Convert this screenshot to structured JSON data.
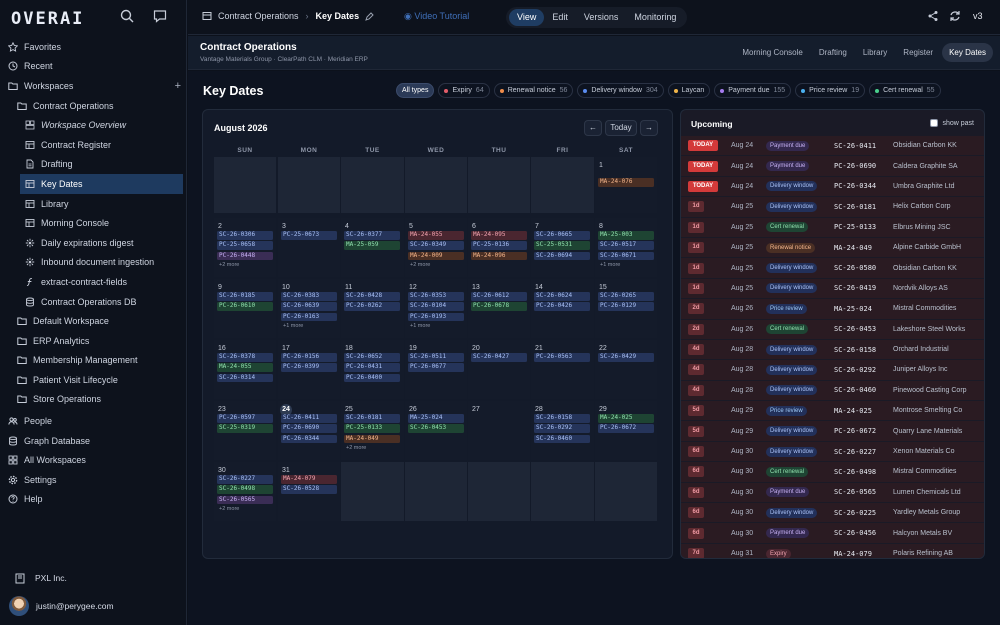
{
  "sidebar": {
    "logo": "OVERAI",
    "items": [
      {
        "label": "Favorites",
        "icon": "star-icon",
        "level": 0
      },
      {
        "label": "Recent",
        "icon": "clock-icon",
        "level": 0
      },
      {
        "label": "Workspaces",
        "icon": "folder-icon",
        "level": 0,
        "plus": "+"
      },
      {
        "label": "Contract Operations",
        "icon": "folder-icon",
        "level": 1
      },
      {
        "label": "Workspace Overview",
        "icon": "dashboard-icon",
        "level": 2,
        "italic": true
      },
      {
        "label": "Contract Register",
        "icon": "table-icon",
        "level": 2
      },
      {
        "label": "Drafting",
        "icon": "document-icon",
        "level": 2
      },
      {
        "label": "Key Dates",
        "icon": "table-icon",
        "level": 2,
        "selected": true
      },
      {
        "label": "Library",
        "icon": "table-icon",
        "level": 2
      },
      {
        "label": "Morning Console",
        "icon": "table-icon",
        "level": 2
      },
      {
        "label": "Daily expirations digest",
        "icon": "automation-icon",
        "level": 2
      },
      {
        "label": "Inbound document ingestion",
        "icon": "automation-icon",
        "level": 2
      },
      {
        "label": "extract-contract-fields",
        "icon": "function-icon",
        "level": 2
      },
      {
        "label": "Contract Operations DB",
        "icon": "database-icon",
        "level": 2
      },
      {
        "label": "Default Workspace",
        "icon": "folder-icon",
        "level": 1
      },
      {
        "label": "ERP Analytics",
        "icon": "folder-icon",
        "level": 1
      },
      {
        "label": "Membership Management",
        "icon": "folder-icon",
        "level": 1
      },
      {
        "label": "Patient Visit Lifecycle",
        "icon": "folder-icon",
        "level": 1
      },
      {
        "label": "Store Operations",
        "icon": "folder-icon",
        "level": 1
      },
      {
        "label": "People",
        "icon": "people-icon",
        "level": 0
      },
      {
        "label": "Graph Database",
        "icon": "database-icon",
        "level": 0
      },
      {
        "label": "All Workspaces",
        "icon": "grid-icon",
        "level": 0
      },
      {
        "label": "Settings",
        "icon": "gear-icon",
        "level": 0
      },
      {
        "label": "Help",
        "icon": "help-icon",
        "level": 0
      }
    ],
    "org": "PXL Inc.",
    "user_email": "justin@perygee.com"
  },
  "topbar": {
    "crumb1": "Contract Operations",
    "sep": "›",
    "crumb2": "Key Dates",
    "video": "Video Tutorial",
    "modes": [
      "View",
      "Edit",
      "Versions",
      "Monitoring"
    ],
    "active_mode": "View",
    "version": "v3"
  },
  "subheader": {
    "title": "Contract Operations",
    "subtitle": "Vantage Materials Group · ClearPath CLM · Meridian ERP",
    "tabs": [
      "Morning Console",
      "Drafting",
      "Library",
      "Register",
      "Key Dates"
    ],
    "active_tab": "Key Dates"
  },
  "page_title": "Key Dates",
  "filters": [
    {
      "label": "All types",
      "count": "",
      "color": "",
      "active": true
    },
    {
      "label": "Expiry",
      "count": "64",
      "color": "#e35d6a"
    },
    {
      "label": "Renewal notice",
      "count": "56",
      "color": "#f08c4a"
    },
    {
      "label": "Delivery window",
      "count": "304",
      "color": "#5b8cf0"
    },
    {
      "label": "Laycan",
      "count": "",
      "color": "#f0b54a"
    },
    {
      "label": "Payment due",
      "count": "155",
      "color": "#a67cf0"
    },
    {
      "label": "Price review",
      "count": "19",
      "color": "#4ab0f0"
    },
    {
      "label": "Cert renewal",
      "count": "55",
      "color": "#4ad08c"
    }
  ],
  "calendar": {
    "month": "August 2026",
    "prev": "←",
    "today_btn": "Today",
    "next": "→",
    "dow": [
      "SUN",
      "MON",
      "TUE",
      "WED",
      "THU",
      "FRI",
      "SAT"
    ],
    "weeks": [
      [
        null,
        null,
        null,
        null,
        null,
        null,
        {
          "d": "1",
          "ev": [
            [
              "MA-24-076",
              "o"
            ]
          ]
        }
      ],
      [
        {
          "d": "2",
          "ev": [
            [
              "SC-26-0306",
              "b"
            ],
            [
              "PC-25-0658",
              "b"
            ],
            [
              "PC-26-0448",
              "p"
            ]
          ],
          "more": "+2 more"
        },
        {
          "d": "3",
          "ev": [
            [
              "PC-25-0673",
              "b"
            ]
          ]
        },
        {
          "d": "4",
          "ev": [
            [
              "SC-26-0377",
              "b"
            ],
            [
              "MA-25-059",
              "g"
            ]
          ]
        },
        {
          "d": "5",
          "ev": [
            [
              "MA-24-055",
              "r"
            ],
            [
              "SC-26-0349",
              "b"
            ],
            [
              "MA-24-009",
              "o"
            ]
          ],
          "more": "+2 more"
        },
        {
          "d": "6",
          "ev": [
            [
              "MA-24-095",
              "r"
            ],
            [
              "PC-25-0136",
              "b"
            ],
            [
              "MA-24-096",
              "o"
            ]
          ]
        },
        {
          "d": "7",
          "ev": [
            [
              "SC-26-0665",
              "b"
            ],
            [
              "SC-25-0531",
              "g"
            ],
            [
              "SC-26-0694",
              "b"
            ]
          ]
        },
        {
          "d": "8",
          "ev": [
            [
              "MA-25-003",
              "g"
            ],
            [
              "SC-26-0517",
              "b"
            ],
            [
              "SC-26-0671",
              "b"
            ]
          ],
          "more": "+1 more"
        }
      ],
      [
        {
          "d": "9",
          "ev": [
            [
              "SC-26-0185",
              "b"
            ],
            [
              "PC-26-0610",
              "g"
            ]
          ]
        },
        {
          "d": "10",
          "ev": [
            [
              "SC-26-0383",
              "b"
            ],
            [
              "SC-26-0639",
              "b"
            ],
            [
              "PC-26-0163",
              "b"
            ]
          ],
          "more": "+1 more"
        },
        {
          "d": "11",
          "ev": [
            [
              "SC-26-0428",
              "b"
            ],
            [
              "PC-26-0262",
              "b"
            ]
          ]
        },
        {
          "d": "12",
          "ev": [
            [
              "SC-26-0353",
              "b"
            ],
            [
              "SC-26-0104",
              "b"
            ],
            [
              "PC-26-0193",
              "b"
            ]
          ],
          "more": "+1 more"
        },
        {
          "d": "13",
          "ev": [
            [
              "SC-26-0612",
              "b"
            ],
            [
              "PC-26-0678",
              "g"
            ]
          ]
        },
        {
          "d": "14",
          "ev": [
            [
              "SC-26-0624",
              "b"
            ],
            [
              "PC-26-0426",
              "b"
            ]
          ]
        },
        {
          "d": "15",
          "ev": [
            [
              "SC-26-0265",
              "b"
            ],
            [
              "PC-26-0129",
              "b"
            ]
          ]
        }
      ],
      [
        {
          "d": "16",
          "ev": [
            [
              "SC-26-0378",
              "b"
            ],
            [
              "MA-24-055",
              "g"
            ],
            [
              "SC-26-0314",
              "b"
            ]
          ]
        },
        {
          "d": "17",
          "ev": [
            [
              "PC-26-0156",
              "b"
            ],
            [
              "PC-26-0399",
              "b"
            ]
          ]
        },
        {
          "d": "18",
          "ev": [
            [
              "SC-26-0652",
              "b"
            ],
            [
              "PC-26-0431",
              "b"
            ],
            [
              "PC-26-0400",
              "b"
            ]
          ]
        },
        {
          "d": "19",
          "ev": [
            [
              "SC-26-0511",
              "b"
            ],
            [
              "PC-26-0677",
              "b"
            ]
          ]
        },
        {
          "d": "20",
          "ev": [
            [
              "SC-26-0427",
              "b"
            ]
          ]
        },
        {
          "d": "21",
          "ev": [
            [
              "PC-26-0563",
              "b"
            ]
          ]
        },
        {
          "d": "22",
          "ev": [
            [
              "SC-26-0429",
              "b"
            ]
          ]
        }
      ],
      [
        {
          "d": "23",
          "ev": [
            [
              "PC-26-0597",
              "b"
            ],
            [
              "SC-25-0319",
              "g"
            ]
          ]
        },
        {
          "d": "24",
          "today": true,
          "ev": [
            [
              "SC-26-0411",
              "b"
            ],
            [
              "PC-26-0690",
              "b"
            ],
            [
              "PC-26-0344",
              "b"
            ]
          ]
        },
        {
          "d": "25",
          "ev": [
            [
              "SC-26-0181",
              "b"
            ],
            [
              "PC-25-0133",
              "g"
            ],
            [
              "MA-24-049",
              "o"
            ]
          ],
          "more": "+2 more"
        },
        {
          "d": "26",
          "ev": [
            [
              "MA-25-024",
              "b"
            ],
            [
              "SC-26-0453",
              "g"
            ]
          ]
        },
        {
          "d": "27",
          "ev": []
        },
        {
          "d": "28",
          "ev": [
            [
              "SC-26-0158",
              "b"
            ],
            [
              "SC-26-0292",
              "b"
            ],
            [
              "SC-26-0460",
              "b"
            ]
          ]
        },
        {
          "d": "29",
          "ev": [
            [
              "MA-24-025",
              "g"
            ],
            [
              "PC-26-0672",
              "b"
            ]
          ]
        }
      ],
      [
        {
          "d": "30",
          "ev": [
            [
              "SC-26-0227",
              "b"
            ],
            [
              "SC-26-0498",
              "g"
            ],
            [
              "SC-26-0565",
              "p"
            ]
          ],
          "more": "+2 more"
        },
        {
          "d": "31",
          "ev": [
            [
              "MA-24-079",
              "r"
            ],
            [
              "SC-26-0528",
              "b"
            ]
          ]
        },
        null,
        null,
        null,
        null,
        null
      ]
    ]
  },
  "upcoming": {
    "title": "Upcoming",
    "show_past": "show past",
    "rows": [
      [
        "TODAY",
        "Aug 24",
        "Payment due",
        "SC-26-0411",
        "Obsidian Carbon KK"
      ],
      [
        "TODAY",
        "Aug 24",
        "Payment due",
        "PC-26-0690",
        "Caldera Graphite SA"
      ],
      [
        "TODAY",
        "Aug 24",
        "Delivery window",
        "PC-26-0344",
        "Umbra Graphite Ltd"
      ],
      [
        "1d",
        "Aug 25",
        "Delivery window",
        "SC-26-0181",
        "Helix Carbon Corp"
      ],
      [
        "1d",
        "Aug 25",
        "Cert renewal",
        "PC-25-0133",
        "Elbrus Mining JSC"
      ],
      [
        "1d",
        "Aug 25",
        "Renewal notice",
        "MA-24-049",
        "Alpine Carbide GmbH"
      ],
      [
        "1d",
        "Aug 25",
        "Delivery window",
        "SC-26-0580",
        "Obsidian Carbon KK"
      ],
      [
        "1d",
        "Aug 25",
        "Delivery window",
        "SC-26-0419",
        "Nordvik Alloys AS"
      ],
      [
        "2d",
        "Aug 26",
        "Price review",
        "MA-25-024",
        "Mistral Commodities"
      ],
      [
        "2d",
        "Aug 26",
        "Cert renewal",
        "SC-26-0453",
        "Lakeshore Steel Works"
      ],
      [
        "4d",
        "Aug 28",
        "Delivery window",
        "SC-26-0158",
        "Orchard Industrial"
      ],
      [
        "4d",
        "Aug 28",
        "Delivery window",
        "SC-26-0292",
        "Juniper Alloys Inc"
      ],
      [
        "4d",
        "Aug 28",
        "Delivery window",
        "SC-26-0460",
        "Pinewood Casting Corp"
      ],
      [
        "5d",
        "Aug 29",
        "Price review",
        "MA-24-025",
        "Montrose Smelting Co"
      ],
      [
        "5d",
        "Aug 29",
        "Delivery window",
        "PC-26-0672",
        "Quarry Lane Materials"
      ],
      [
        "6d",
        "Aug 30",
        "Delivery window",
        "SC-26-0227",
        "Xenon Materials Co"
      ],
      [
        "6d",
        "Aug 30",
        "Cert renewal",
        "SC-26-0498",
        "Mistral Commodities"
      ],
      [
        "6d",
        "Aug 30",
        "Payment due",
        "SC-26-0565",
        "Lumen Chemicals Ltd"
      ],
      [
        "6d",
        "Aug 30",
        "Delivery window",
        "SC-26-0225",
        "Yardley Metals Group"
      ],
      [
        "6d",
        "Aug 30",
        "Payment due",
        "SC-26-0456",
        "Halcyon Metals BV"
      ],
      [
        "7d",
        "Aug 31",
        "Expiry",
        "MA-24-079",
        "Polaris Refining AB"
      ]
    ]
  }
}
